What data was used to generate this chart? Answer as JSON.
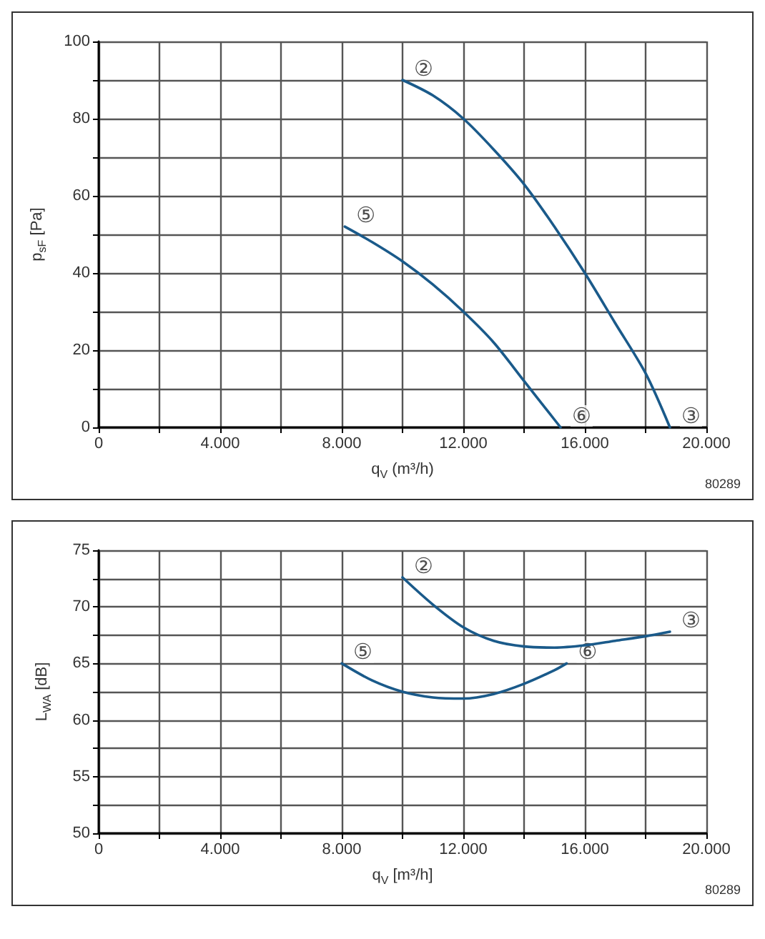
{
  "chart_data": [
    {
      "type": "line",
      "xlabel": "q$_{V}$ (m³/h)",
      "ylabel": "p$_{sF}$ [Pa]",
      "xlim": [
        0,
        20000
      ],
      "ylim": [
        0,
        100
      ],
      "xticks": [
        0,
        {
          "value": 2000,
          "label": null
        },
        {
          "value": 4000,
          "label": "4.000"
        },
        {
          "value": 6000,
          "label": null
        },
        {
          "value": 8000,
          "label": "8.000"
        },
        {
          "value": 10000,
          "label": null
        },
        {
          "value": 12000,
          "label": "12.000"
        },
        {
          "value": 14000,
          "label": null
        },
        {
          "value": 16000,
          "label": "16.000"
        },
        {
          "value": 18000,
          "label": null
        },
        {
          "value": 20000,
          "label": "20.000"
        }
      ],
      "yticks": [
        0,
        {
          "value": 10,
          "label": null
        },
        20,
        {
          "value": 30,
          "label": null
        },
        40,
        {
          "value": 50,
          "label": null
        },
        60,
        {
          "value": 70,
          "label": null
        },
        80,
        {
          "value": 90,
          "label": null
        },
        100
      ],
      "grid": true,
      "marker": "none",
      "line_style": "solid",
      "series": [
        {
          "color": "#1a5a8a",
          "x": [
            10000,
            11000,
            12000,
            13000,
            14000,
            15000,
            16000,
            17000,
            18000,
            18800
          ],
          "values": [
            90,
            86,
            80,
            72,
            63,
            52,
            40,
            27,
            14,
            0
          ]
        },
        {
          "color": "#1a5a8a",
          "x": [
            8100,
            9000,
            10000,
            11000,
            12000,
            13000,
            14000,
            14800,
            15200
          ],
          "values": [
            52,
            48,
            43,
            37,
            30,
            22,
            12,
            4,
            0
          ]
        }
      ],
      "annotations": [
        {
          "text": "②",
          "x": 10000,
          "y": 90
        },
        {
          "text": "⑤",
          "x": 8100,
          "y": 52
        },
        {
          "text": "⑥",
          "x": 15200,
          "y": 0
        },
        {
          "text": "③",
          "x": 18800,
          "y": 0
        },
        "80289"
      ]
    },
    {
      "type": "line",
      "xlabel": "q$_{V}$ [m³/h]",
      "ylabel": "L$_{WA}$ [dB]",
      "xlim": [
        0,
        20000
      ],
      "ylim": [
        50,
        75
      ],
      "xticks": [
        0,
        {
          "value": 2000,
          "label": null
        },
        {
          "value": 4000,
          "label": "4.000"
        },
        {
          "value": 6000,
          "label": null
        },
        {
          "value": 8000,
          "label": "8.000"
        },
        {
          "value": 10000,
          "label": null
        },
        {
          "value": 12000,
          "label": "12.000"
        },
        {
          "value": 14000,
          "label": null
        },
        {
          "value": 16000,
          "label": "16.000"
        },
        {
          "value": 18000,
          "label": null
        },
        {
          "value": 20000,
          "label": "20.000"
        }
      ],
      "yticks": [
        50,
        {
          "value": 52.5,
          "label": null
        },
        55,
        {
          "value": 57.5,
          "label": null
        },
        60,
        {
          "value": 62.5,
          "label": null
        },
        65,
        {
          "value": 67.5,
          "label": null
        },
        70,
        {
          "value": 72.5,
          "label": null
        },
        75
      ],
      "grid": true,
      "marker": "none",
      "line_style": "solid",
      "series": [
        {
          "color": "#1a5a8a",
          "x": [
            10000,
            11000,
            12000,
            13000,
            14000,
            15000,
            16000,
            17000,
            18000,
            18800
          ],
          "values": [
            72.6,
            70.2,
            68.2,
            67,
            66.5,
            66.4,
            66.6,
            67,
            67.4,
            67.8
          ]
        },
        {
          "color": "#1a5a8a",
          "x": [
            8000,
            9000,
            10000,
            11000,
            12000,
            13000,
            14000,
            15000,
            15400
          ],
          "values": [
            65,
            63.5,
            62.5,
            62,
            61.9,
            62.3,
            63.2,
            64.4,
            65
          ]
        }
      ],
      "annotations": [
        {
          "text": "②",
          "x": 10000,
          "y": 72.6
        },
        {
          "text": "⑤",
          "x": 8000,
          "y": 65
        },
        {
          "text": "⑥",
          "x": 15400,
          "y": 65
        },
        {
          "text": "③",
          "x": 18800,
          "y": 67.8
        },
        "80289"
      ]
    }
  ]
}
